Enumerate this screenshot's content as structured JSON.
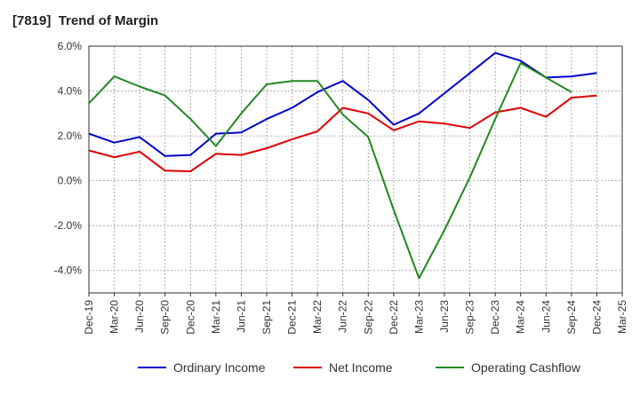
{
  "chart_data": {
    "type": "line",
    "title": "[7819]  Trend of Margin",
    "xlabel": "",
    "ylabel": "",
    "ylim": [
      -5.0,
      6.0
    ],
    "yticks": [
      6.0,
      4.0,
      2.0,
      0.0,
      -2.0,
      -4.0
    ],
    "y_tick_labels": [
      "6.0%",
      "4.0%",
      "2.0%",
      "0.0%",
      "-2.0%",
      "-4.0%"
    ],
    "x": [
      "Dec-19",
      "Mar-20",
      "Jun-20",
      "Sep-20",
      "Dec-20",
      "Mar-21",
      "Jun-21",
      "Sep-21",
      "Dec-21",
      "Mar-22",
      "Jun-22",
      "Sep-22",
      "Dec-22",
      "Mar-23",
      "Jun-23",
      "Sep-23",
      "Dec-23",
      "Mar-24",
      "Jun-24",
      "Sep-24",
      "Dec-24",
      "Mar-25"
    ],
    "grid": "dashed",
    "legend_position": "bottom",
    "series": [
      {
        "name": "Ordinary Income",
        "color": "#0000cc",
        "values": [
          2.1,
          1.7,
          1.95,
          1.1,
          1.15,
          2.1,
          2.15,
          2.75,
          3.25,
          3.95,
          4.45,
          3.6,
          2.5,
          3.0,
          3.9,
          4.8,
          5.7,
          5.35,
          4.6,
          4.65,
          4.8,
          null
        ]
      },
      {
        "name": "Net Income",
        "color": "#dd0000",
        "values": [
          1.35,
          1.05,
          1.3,
          0.45,
          0.42,
          1.2,
          1.15,
          1.45,
          1.85,
          2.2,
          3.25,
          3.0,
          2.25,
          2.65,
          2.55,
          2.35,
          3.05,
          3.25,
          2.85,
          3.7,
          3.8,
          null
        ]
      },
      {
        "name": "Operating Cashflow",
        "color": "#228822",
        "values": [
          3.45,
          4.65,
          4.2,
          3.8,
          2.75,
          1.55,
          3.0,
          4.3,
          4.45,
          4.45,
          2.95,
          1.95,
          -1.3,
          -4.35,
          -2.2,
          0.15,
          2.75,
          5.25,
          4.6,
          3.95,
          null,
          null
        ]
      }
    ]
  }
}
